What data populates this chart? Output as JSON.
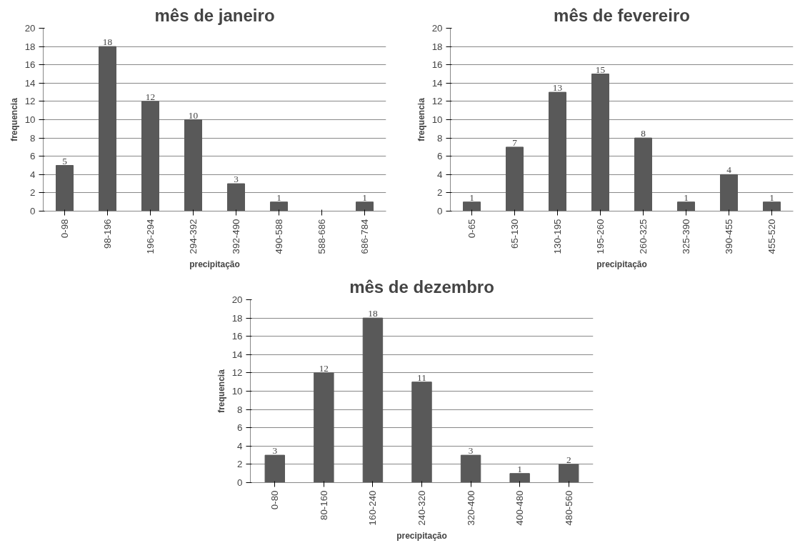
{
  "chart_data": [
    {
      "type": "bar",
      "title": "mês de janeiro",
      "xlabel": "precipitação",
      "ylabel": "frequencia",
      "categories": [
        "0-98",
        "98-196",
        "196-294",
        "294-392",
        "392-490",
        "490-588",
        "588-686",
        "686-784"
      ],
      "values": [
        5,
        18,
        12,
        10,
        3,
        1,
        0,
        1
      ],
      "value_labels": [
        "5",
        "18",
        "12",
        "10",
        "3",
        "1",
        null,
        "1"
      ],
      "color": "#595959",
      "ylim": [
        0,
        20
      ],
      "yticks": [
        0,
        2,
        4,
        6,
        8,
        10,
        12,
        14,
        16,
        18,
        20
      ],
      "grid": "y"
    },
    {
      "type": "bar",
      "title": "mês de fevereiro",
      "xlabel": "precipitação",
      "ylabel": "frequencia",
      "categories": [
        "0-65",
        "65-130",
        "130-195",
        "195-260",
        "260-325",
        "325-390",
        "390-455",
        "455-520"
      ],
      "values": [
        1,
        7,
        13,
        15,
        8,
        1,
        4,
        1
      ],
      "data_labels": true,
      "color": "#595959",
      "ylim": [
        0,
        20
      ],
      "yticks": [
        0,
        2,
        4,
        6,
        8,
        10,
        12,
        14,
        16,
        18,
        20
      ],
      "grid": "y"
    },
    {
      "type": "bar",
      "title": "mês de dezembro",
      "xlabel": "precipitação",
      "ylabel": "frequencia",
      "categories": [
        "0-80",
        "80-160",
        "160-240",
        "240-320",
        "320-400",
        "400-480",
        "480-560"
      ],
      "values": [
        3,
        12,
        18,
        11,
        3,
        1,
        2
      ],
      "data_labels": true,
      "color": "#595959",
      "ylim": [
        0,
        20
      ],
      "yticks": [
        0,
        2,
        4,
        6,
        8,
        10,
        12,
        14,
        16,
        18,
        20
      ],
      "grid": "y"
    }
  ]
}
